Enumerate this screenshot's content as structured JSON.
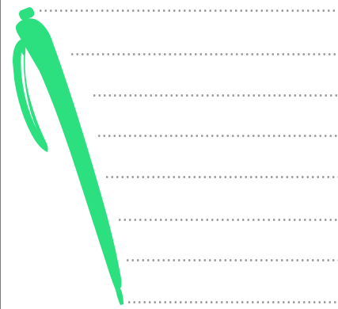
{
  "colors": {
    "background": "#ffffff",
    "dots": "#9a9a9a",
    "pen": "#2ce07f",
    "border": "#7a7a7a"
  },
  "icons": {
    "pen": "pen-icon"
  },
  "lines": {
    "count": 8,
    "style": "dotted"
  }
}
